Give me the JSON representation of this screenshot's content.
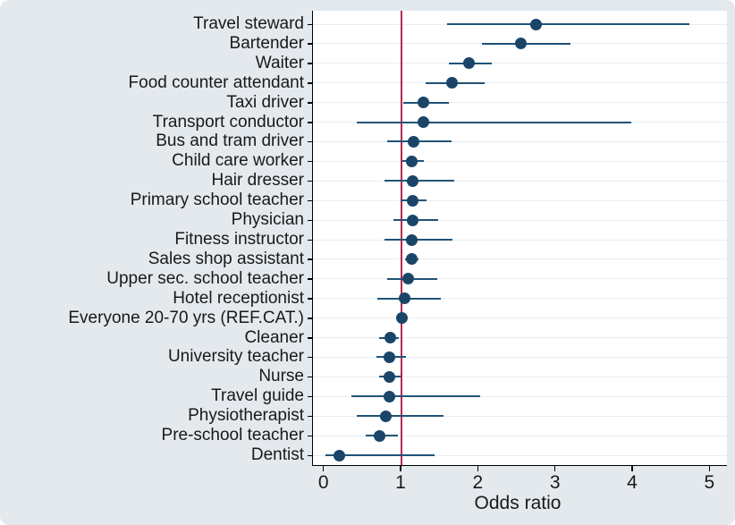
{
  "figure": {
    "background": "#e4e9ee",
    "plot_background": "#ffffff",
    "grid_color": "#e8edf2",
    "marker_color": "#1a4569",
    "ci_color": "#1f5377",
    "ref_line_color": "#b62a4e",
    "axis_color": "#000000",
    "text_color": "#191919"
  },
  "chart_data": {
    "type": "scatter",
    "subtype": "forest-plot-dot-with-ci",
    "title": "",
    "xlabel": "Odds ratio",
    "ylabel": "",
    "x_ticks": [
      0,
      1,
      2,
      3,
      4,
      5
    ],
    "xlim": [
      -0.15,
      5.2
    ],
    "ref_line_x": 1,
    "grid": "horizontal",
    "legend": "none",
    "rows": [
      {
        "label": "Travel steward",
        "or": 2.74,
        "ci_low": 1.59,
        "ci_high": 4.73
      },
      {
        "label": "Bartender",
        "or": 2.55,
        "ci_low": 2.04,
        "ci_high": 3.19
      },
      {
        "label": "Waiter",
        "or": 1.87,
        "ci_low": 1.61,
        "ci_high": 2.17
      },
      {
        "label": "Food counter attendant",
        "or": 1.65,
        "ci_low": 1.31,
        "ci_high": 2.08
      },
      {
        "label": "Taxi driver",
        "or": 1.28,
        "ci_low": 1.02,
        "ci_high": 1.61
      },
      {
        "label": "Transport conductor",
        "or": 1.28,
        "ci_low": 0.42,
        "ci_high": 3.98
      },
      {
        "label": "Bus and tram driver",
        "or": 1.16,
        "ci_low": 0.82,
        "ci_high": 1.65
      },
      {
        "label": "Child care worker",
        "or": 1.13,
        "ci_low": 1.01,
        "ci_high": 1.29
      },
      {
        "label": "Hair dresser",
        "or": 1.14,
        "ci_low": 0.78,
        "ci_high": 1.68
      },
      {
        "label": "Primary school teacher",
        "or": 1.15,
        "ci_low": 0.99,
        "ci_high": 1.32
      },
      {
        "label": "Physician",
        "or": 1.14,
        "ci_low": 0.89,
        "ci_high": 1.47
      },
      {
        "label": "Fitness instructor",
        "or": 1.13,
        "ci_low": 0.78,
        "ci_high": 1.66
      },
      {
        "label": "Sales shop assistant",
        "or": 1.13,
        "ci_low": 1.05,
        "ci_high": 1.22
      },
      {
        "label": "Upper sec. school teacher",
        "or": 1.09,
        "ci_low": 0.82,
        "ci_high": 1.46
      },
      {
        "label": "Hotel receptionist",
        "or": 1.04,
        "ci_low": 0.69,
        "ci_high": 1.51
      },
      {
        "label": "Everyone 20-70 yrs (REF.CAT.)",
        "or": 1.0,
        "ci_low": 0.97,
        "ci_high": 1.03
      },
      {
        "label": "Cleaner",
        "or": 0.85,
        "ci_low": 0.71,
        "ci_high": 0.97
      },
      {
        "label": "University teacher",
        "or": 0.84,
        "ci_low": 0.68,
        "ci_high": 1.06
      },
      {
        "label": "Nurse",
        "or": 0.84,
        "ci_low": 0.71,
        "ci_high": 0.99
      },
      {
        "label": "Travel guide",
        "or": 0.84,
        "ci_low": 0.35,
        "ci_high": 2.02
      },
      {
        "label": "Physiotherapist",
        "or": 0.8,
        "ci_low": 0.42,
        "ci_high": 1.54
      },
      {
        "label": "Pre-school teacher",
        "or": 0.72,
        "ci_low": 0.54,
        "ci_high": 0.95
      },
      {
        "label": "Dentist",
        "or": 0.2,
        "ci_low": 0.02,
        "ci_high": 1.43
      }
    ]
  }
}
